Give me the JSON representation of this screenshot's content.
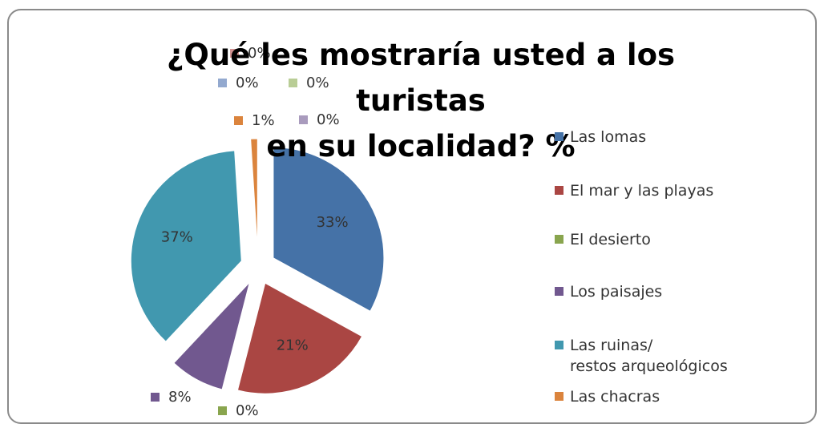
{
  "chart_data": {
    "type": "pie",
    "title": "¿Qué les mostraría usted a los turistas\nen su localidad? %",
    "categories": [
      "Las lomas",
      "El mar y las playas",
      "El desierto",
      "Los paisajes",
      "Las ruinas/\nrestos arqueológicos",
      "Las chacras",
      null,
      null,
      null,
      null
    ],
    "values": [
      33,
      21,
      0,
      8,
      37,
      1,
      0,
      0,
      0,
      0
    ],
    "value_labels": [
      "33%",
      "21%",
      "0%",
      "8%",
      "37%",
      "1%",
      "0%",
      "0%",
      "0%",
      "0%"
    ],
    "colors": [
      "#4572a7",
      "#aa4643",
      "#89a54e",
      "#71588f",
      "#4198af",
      "#db843d",
      "#a99bbd",
      "#93a9cf",
      "#d19392",
      "#b9cd96"
    ],
    "exploded": true,
    "legend": "right"
  }
}
